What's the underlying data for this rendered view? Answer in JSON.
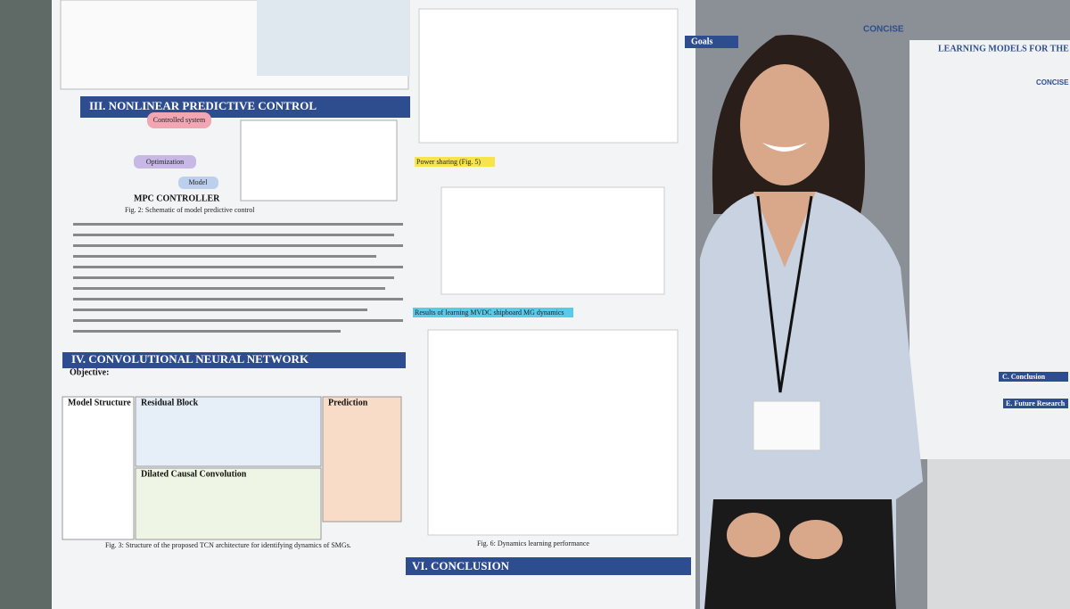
{
  "poster": {
    "nmpc_heading": "III. NONLINEAR PREDICTIVE CONTROL",
    "controlled_system": "Controlled system",
    "optimization": "Optimization",
    "model": "Model",
    "mpc_controller": "MPC CONTROLLER",
    "fig2_caption": "Fig. 2: Schematic of model predictive control",
    "cnn_heading": "IV. CONVOLUTIONAL NEURAL NETWORK",
    "objective": "Objective:",
    "model_structure": "Model Structure",
    "residual_block": "Residual Block",
    "prediction": "Prediction",
    "dilated_conv": "Dilated Causal Convolution",
    "fig3_caption": "Fig. 3: Structure of the proposed TCN architecture for identifying dynamics of SMGs.",
    "power_sharing": "Power sharing (Fig. 5)",
    "results_heading": "Results of learning MVDC shipboard MG dynamics",
    "fig6_caption": "Fig. 6: Dynamics learning performance",
    "conclusion_heading": "VI. CONCLUSION",
    "goals": "Goals",
    "logo": "CONCISE"
  },
  "right_poster": {
    "title": "LEARNING MODELS FOR THE",
    "logo": "CONCISE",
    "conclusion": "C. Conclusion",
    "future": "E. Future Research"
  }
}
